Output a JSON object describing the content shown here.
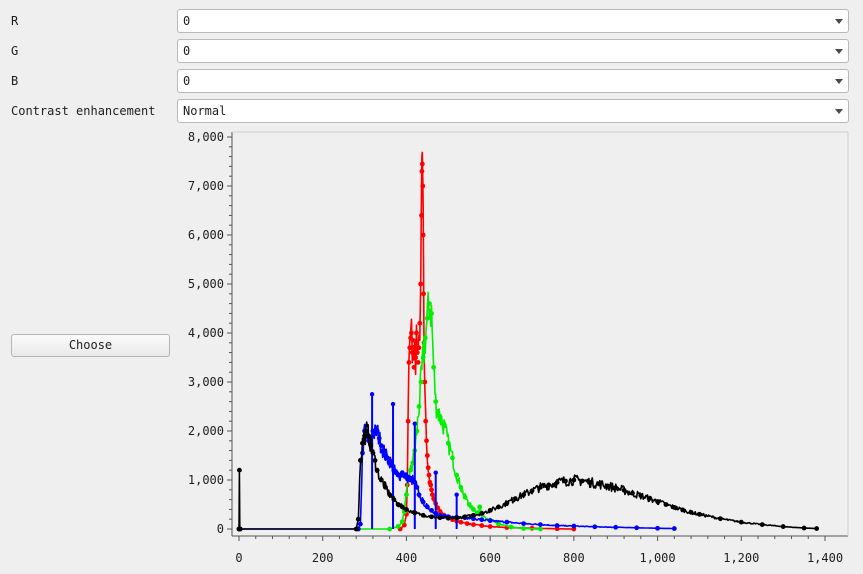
{
  "controls": {
    "r_label": "R",
    "r_value": "0",
    "g_label": "G",
    "g_value": "0",
    "b_label": "B",
    "b_value": "0",
    "contrast_label": "Contrast enhancement",
    "contrast_value": "Normal",
    "choose_label": "Choose"
  },
  "chart_data": {
    "type": "line",
    "title": "",
    "xlabel": "",
    "ylabel": "",
    "xlim": [
      0,
      1400
    ],
    "ylim": [
      0,
      8000
    ],
    "xticks": [
      0,
      200,
      400,
      600,
      800,
      1000,
      1200,
      1400
    ],
    "yticks": [
      0,
      1000,
      2000,
      3000,
      4000,
      5000,
      6000,
      7000,
      8000
    ],
    "x_tick_labels": [
      "0",
      "200",
      "400",
      "600",
      "800",
      "1,000",
      "1,200",
      "1,400"
    ],
    "y_tick_labels": [
      "0",
      "1,000",
      "2,000",
      "3,000",
      "4,000",
      "5,000",
      "6,000",
      "7,000",
      "8,000"
    ],
    "grid": false,
    "series": [
      {
        "color": "#ff0000",
        "x": [
          385,
          395,
          400,
          402,
          404,
          406,
          408,
          410,
          412,
          414,
          416,
          418,
          420,
          422,
          424,
          426,
          428,
          430,
          432,
          434,
          436,
          437,
          438,
          439,
          440,
          441,
          442,
          444,
          446,
          448,
          450,
          452,
          454,
          456,
          458,
          460,
          462,
          465,
          470,
          475,
          480,
          490,
          500,
          510,
          520,
          530,
          545,
          560,
          580,
          600,
          640,
          700,
          760,
          800
        ],
        "y": [
          0,
          80,
          300,
          900,
          2200,
          3400,
          3700,
          3900,
          4000,
          3600,
          3850,
          3300,
          3700,
          3500,
          4000,
          3600,
          3400,
          3700,
          4200,
          5000,
          6400,
          7300,
          7450,
          7000,
          6000,
          4800,
          3800,
          3000,
          2200,
          1800,
          1500,
          1250,
          1100,
          950,
          900,
          800,
          700,
          620,
          520,
          430,
          360,
          280,
          230,
          190,
          160,
          140,
          110,
          90,
          70,
          50,
          30,
          15,
          5,
          0
        ]
      },
      {
        "color": "#00ee00",
        "x": [
          285,
          360,
          380,
          390,
          395,
          400,
          405,
          410,
          415,
          420,
          425,
          430,
          435,
          440,
          445,
          450,
          455,
          460,
          465,
          470,
          475,
          480,
          490,
          500,
          510,
          520,
          530,
          540,
          550,
          560,
          570,
          575,
          580,
          600,
          620,
          650,
          680,
          720
        ],
        "y": [
          0,
          0,
          50,
          150,
          350,
          700,
          1000,
          1200,
          1350,
          1600,
          2000,
          2500,
          3000,
          3500,
          3900,
          4300,
          4600,
          4400,
          3300,
          2600,
          2400,
          2300,
          2100,
          1750,
          1450,
          1100,
          850,
          650,
          500,
          400,
          330,
          450,
          300,
          180,
          100,
          40,
          10,
          0
        ]
      },
      {
        "color": "#0000ff",
        "x": [
          0,
          1,
          285,
          290,
          295,
          300,
          305,
          310,
          315,
          320,
          325,
          330,
          335,
          340,
          345,
          350,
          355,
          360,
          365,
          370,
          375,
          380,
          385,
          390,
          395,
          400,
          405,
          410,
          415,
          420,
          425,
          430,
          440,
          450,
          460,
          470,
          480,
          490,
          500,
          520,
          540,
          560,
          580,
          600,
          640,
          680,
          720,
          760,
          800,
          850,
          900,
          950,
          1000,
          1040
        ],
        "y": [
          0,
          0,
          0,
          100,
          1550,
          2000,
          1900,
          1800,
          1750,
          2000,
          1950,
          2000,
          1850,
          1700,
          1600,
          1500,
          1450,
          1400,
          1300,
          1200,
          1150,
          1100,
          1100,
          1150,
          1100,
          1050,
          1050,
          1000,
          1000,
          950,
          850,
          700,
          550,
          450,
          380,
          320,
          280,
          260,
          250,
          240,
          230,
          210,
          190,
          170,
          140,
          110,
          90,
          70,
          60,
          45,
          35,
          25,
          15,
          10
        ]
      },
      {
        "color": "#0000ff",
        "mode": "spikes",
        "x": [
          318,
          368,
          420,
          470,
          520
        ],
        "y": [
          2750,
          2550,
          2150,
          1150,
          700
        ]
      },
      {
        "color": "#000000",
        "x": [
          0,
          1,
          2,
          3,
          280,
          285,
          290,
          295,
          300,
          305,
          310,
          315,
          320,
          325,
          330,
          340,
          350,
          360,
          370,
          380,
          390,
          400,
          420,
          440,
          460,
          480,
          500,
          520,
          540,
          560,
          580,
          600,
          620,
          640,
          660,
          680,
          700,
          720,
          740,
          760,
          780,
          800,
          820,
          840,
          860,
          880,
          900,
          920,
          940,
          960,
          980,
          1000,
          1020,
          1040,
          1060,
          1080,
          1100,
          1150,
          1200,
          1250,
          1300,
          1350,
          1380
        ],
        "y": [
          0,
          1200,
          0,
          0,
          0,
          200,
          1400,
          1750,
          1900,
          2000,
          1900,
          1700,
          1550,
          1400,
          1200,
          1000,
          850,
          700,
          600,
          500,
          450,
          400,
          330,
          280,
          250,
          230,
          220,
          230,
          250,
          280,
          320,
          380,
          450,
          530,
          620,
          700,
          780,
          850,
          900,
          950,
          980,
          1000,
          980,
          950,
          920,
          880,
          840,
          790,
          730,
          680,
          620,
          560,
          500,
          440,
          390,
          340,
          300,
          210,
          140,
          90,
          50,
          20,
          10
        ]
      }
    ]
  }
}
